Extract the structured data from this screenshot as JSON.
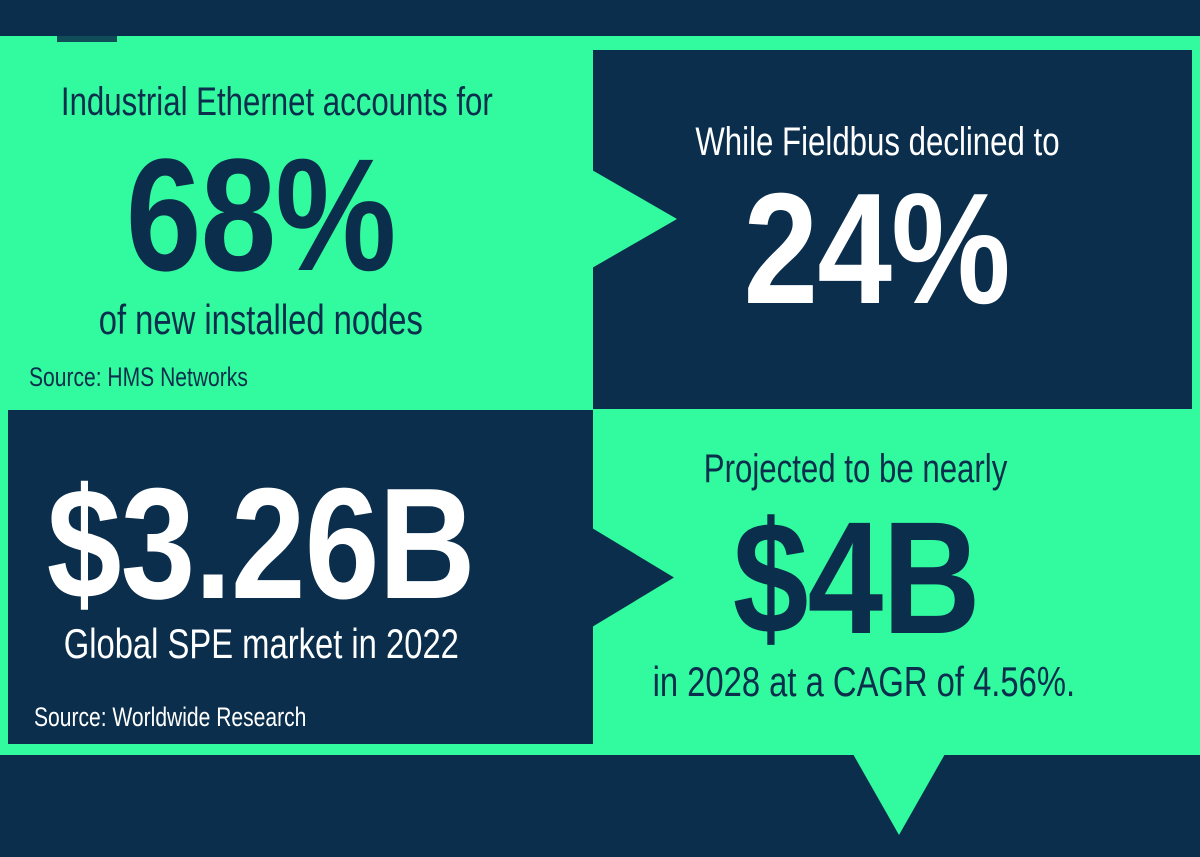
{
  "colors": {
    "navy": "#0a2e4c",
    "green": "#32fa9e",
    "white": "#ffffff"
  },
  "panels": {
    "top_left": {
      "heading": "Industrial Ethernet accounts for",
      "stat": "68%",
      "subtext": "of new installed nodes",
      "source": "Source: HMS Networks"
    },
    "top_right": {
      "heading": "While Fieldbus declined to",
      "stat": "24%"
    },
    "bottom_left": {
      "stat": "$3.26B",
      "subtext": "Global SPE market in 2022",
      "source": "Source: Worldwide Research"
    },
    "bottom_right": {
      "heading": "Projected to be nearly",
      "stat": "$4B",
      "subtext": "in 2028 at a CAGR of 4.56%."
    }
  },
  "chart_data": {
    "type": "table",
    "rows": [
      {
        "metric": "Industrial Ethernet accounts for of new installed nodes",
        "value": 68,
        "display": "68%",
        "unit": "percent",
        "source": "HMS Networks"
      },
      {
        "metric": "While Fieldbus declined to",
        "value": 24,
        "display": "24%",
        "unit": "percent",
        "source": "HMS Networks"
      },
      {
        "metric": "Global SPE market in 2022",
        "value": 3.26,
        "display": "$3.26B",
        "unit": "USD billions",
        "source": "Worldwide Research"
      },
      {
        "metric": "Projected to be nearly, in 2028 at a CAGR of 4.56%.",
        "value": 4,
        "display": "$4B",
        "unit": "USD billions",
        "source": "Worldwide Research"
      }
    ]
  }
}
